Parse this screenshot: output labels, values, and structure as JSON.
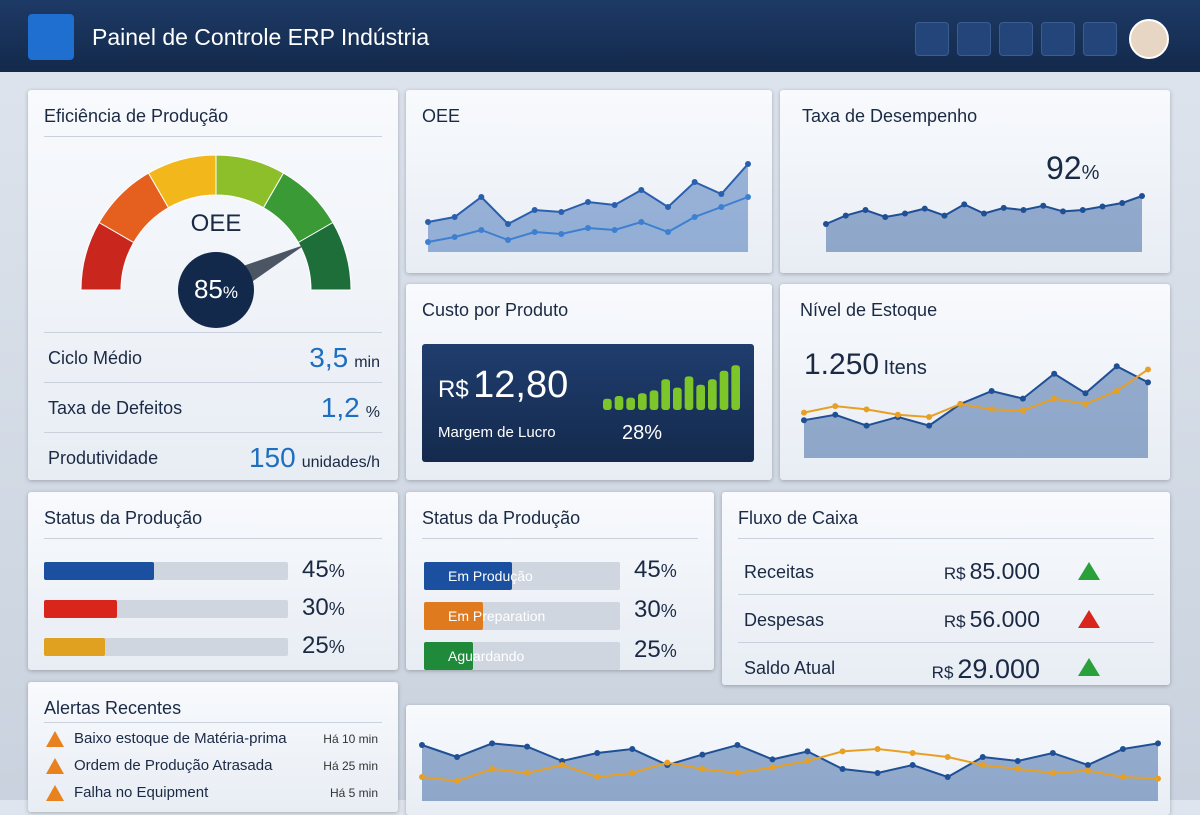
{
  "header": {
    "title": "Painel de Controle ERP Indústria"
  },
  "efficiency": {
    "title": "Eficiência de Produção",
    "gauge": {
      "label": "OEE",
      "value": 85,
      "unit": "%",
      "range": [
        0,
        100
      ],
      "colors": [
        "#c9261d",
        "#e5601e",
        "#f2b81b",
        "#8cbf2a",
        "#3a9a35",
        "#1e6e3a"
      ]
    },
    "metrics": [
      {
        "label": "Ciclo Médio",
        "value": "3,5",
        "unit": "min"
      },
      {
        "label": "Taxa de Defeitos",
        "value": "1,2",
        "unit": "%"
      },
      {
        "label": "Produtividade",
        "value": "150",
        "unit": "unidades/h"
      }
    ]
  },
  "oee": {
    "title": "OEE",
    "chart": {
      "ylim": [
        0,
        100
      ],
      "series": [
        {
          "style": "area",
          "color": "#2a5fae",
          "values": [
            30,
            35,
            55,
            28,
            42,
            40,
            50,
            47,
            62,
            45,
            70,
            58,
            88
          ]
        },
        {
          "style": "line",
          "color": "#3d7fd0",
          "values": [
            10,
            15,
            22,
            12,
            20,
            18,
            24,
            22,
            30,
            20,
            35,
            45,
            55
          ]
        }
      ]
    }
  },
  "performance": {
    "title": "Taxa de Desempenho",
    "value": 92,
    "unit": "%",
    "chart": {
      "ylim": [
        0,
        100
      ],
      "series": [
        {
          "style": "area",
          "color": "#1f4f95",
          "values": [
            40,
            52,
            60,
            50,
            55,
            62,
            52,
            68,
            55,
            63,
            60,
            66,
            58,
            60,
            65,
            70,
            80
          ]
        }
      ]
    }
  },
  "cost": {
    "title": "Custo por Produto",
    "currency": "R$",
    "price": "12,80",
    "margin_label": "Margem de Lucro",
    "margin": 28,
    "margin_unit": "%",
    "chart": {
      "ylim": [
        0,
        100
      ],
      "color": "#7cc62a",
      "values": [
        20,
        25,
        22,
        30,
        35,
        55,
        40,
        60,
        45,
        55,
        70,
        80
      ]
    }
  },
  "stock": {
    "title": "Nível de Estoque",
    "value": "1.250",
    "unit": "Itens",
    "chart": {
      "ylim": [
        0,
        100
      ],
      "series": [
        {
          "style": "area",
          "color": "#1f4f95",
          "values": [
            35,
            40,
            30,
            38,
            30,
            50,
            62,
            55,
            78,
            60,
            85,
            70
          ]
        },
        {
          "style": "line",
          "color": "#e8a024",
          "values": [
            42,
            48,
            45,
            40,
            38,
            50,
            45,
            44,
            55,
            50,
            62,
            82
          ]
        }
      ]
    }
  },
  "status": {
    "title": "Status da Produção",
    "unit": "%",
    "items": [
      {
        "value": 45,
        "color": "#1b4fa0"
      },
      {
        "value": 30,
        "color": "#d8261c"
      },
      {
        "value": 25,
        "color": "#e0a020"
      }
    ]
  },
  "status2": {
    "title": "Status da Produção",
    "unit": "%",
    "items": [
      {
        "label": "Em Produção",
        "value": 45,
        "color": "#1b4fa0"
      },
      {
        "label": "Em Preparation",
        "value": 30,
        "color": "#e07a1e"
      },
      {
        "label": "Aguardando",
        "value": 25,
        "color": "#1f8a3a"
      }
    ]
  },
  "cashflow": {
    "title": "Fluxo de Caixa",
    "rows": [
      {
        "label": "Receitas",
        "currency": "R$",
        "amount": "85.000"
      },
      {
        "label": "Despesas",
        "currency": "R$",
        "amount": "56.000"
      },
      {
        "label": "Saldo Atual",
        "currency": "R$",
        "amount": "29.000"
      }
    ]
  },
  "alerts": {
    "title": "Alertas Recentes",
    "items": [
      {
        "text": "Baixo estoque de Matéria-prima",
        "time": "Há 10 min"
      },
      {
        "text": "Ordem de Produção Atrasada",
        "time": "Há 25 min"
      },
      {
        "text": "Falha no Equipment",
        "time": "Há 5 min"
      }
    ]
  },
  "trend": {
    "chart": {
      "ylim": [
        0,
        100
      ],
      "series": [
        {
          "style": "area",
          "color": "#1f4f95",
          "values": [
            70,
            55,
            72,
            68,
            50,
            60,
            65,
            45,
            58,
            70,
            52,
            62,
            40,
            35,
            45,
            30,
            55,
            50,
            60,
            45,
            65,
            72
          ]
        },
        {
          "style": "line",
          "color": "#e8a024",
          "values": [
            30,
            25,
            40,
            35,
            45,
            30,
            35,
            48,
            40,
            35,
            42,
            50,
            62,
            65,
            60,
            55,
            45,
            40,
            35,
            38,
            30,
            28
          ]
        }
      ]
    }
  }
}
